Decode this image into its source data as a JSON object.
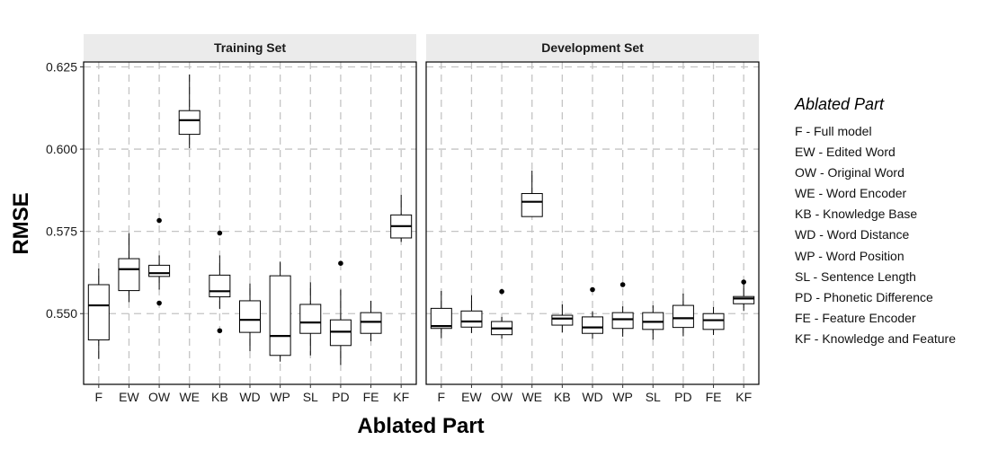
{
  "chart_data": {
    "type": "boxplot",
    "x_label": "Ablated Part",
    "y_label": "RMSE",
    "ylim": [
      0.5285,
      0.6265
    ],
    "y_ticks": [
      0.55,
      0.575,
      0.6,
      0.625
    ],
    "y_tick_labels": [
      "0.550",
      "0.575",
      "0.600",
      "0.625"
    ],
    "grid": "dashed",
    "categories": [
      "F",
      "EW",
      "OW",
      "WE",
      "KB",
      "WD",
      "WP",
      "SL",
      "PD",
      "FE",
      "KF"
    ],
    "panels": [
      {
        "title": "Training Set",
        "boxes": [
          {
            "category": "F",
            "q1": 0.542,
            "median": 0.5525,
            "q3": 0.5588,
            "whisker_low": 0.5362,
            "whisker_high": 0.5637,
            "outliers": []
          },
          {
            "category": "EW",
            "q1": 0.557,
            "median": 0.5635,
            "q3": 0.5667,
            "whisker_low": 0.5535,
            "whisker_high": 0.5745,
            "outliers": []
          },
          {
            "category": "OW",
            "q1": 0.5613,
            "median": 0.5623,
            "q3": 0.5647,
            "whisker_low": 0.5573,
            "whisker_high": 0.5677,
            "outliers": [
              0.5532,
              0.5783
            ]
          },
          {
            "category": "WE",
            "q1": 0.6045,
            "median": 0.6088,
            "q3": 0.6117,
            "whisker_low": 0.6003,
            "whisker_high": 0.6227,
            "outliers": []
          },
          {
            "category": "KB",
            "q1": 0.5551,
            "median": 0.5568,
            "q3": 0.5617,
            "whisker_low": 0.5514,
            "whisker_high": 0.5677,
            "outliers": [
              0.5448,
              0.5745
            ]
          },
          {
            "category": "WD",
            "q1": 0.5443,
            "median": 0.5481,
            "q3": 0.5539,
            "whisker_low": 0.5386,
            "whisker_high": 0.5592,
            "outliers": []
          },
          {
            "category": "WP",
            "q1": 0.5373,
            "median": 0.5432,
            "q3": 0.5615,
            "whisker_low": 0.5354,
            "whisker_high": 0.5658,
            "outliers": []
          },
          {
            "category": "SL",
            "q1": 0.544,
            "median": 0.5473,
            "q3": 0.5528,
            "whisker_low": 0.5373,
            "whisker_high": 0.5595,
            "outliers": []
          },
          {
            "category": "PD",
            "q1": 0.5403,
            "median": 0.5445,
            "q3": 0.5481,
            "whisker_low": 0.5344,
            "whisker_high": 0.5573,
            "outliers": [
              0.5653
            ]
          },
          {
            "category": "FE",
            "q1": 0.544,
            "median": 0.5475,
            "q3": 0.5503,
            "whisker_low": 0.5416,
            "whisker_high": 0.5539,
            "outliers": []
          },
          {
            "category": "KF",
            "q1": 0.573,
            "median": 0.5766,
            "q3": 0.58,
            "whisker_low": 0.5718,
            "whisker_high": 0.5861,
            "outliers": []
          }
        ]
      },
      {
        "title": "Development Set",
        "boxes": [
          {
            "category": "F",
            "q1": 0.5455,
            "median": 0.5462,
            "q3": 0.5516,
            "whisker_low": 0.5425,
            "whisker_high": 0.5569,
            "outliers": []
          },
          {
            "category": "EW",
            "q1": 0.5459,
            "median": 0.5476,
            "q3": 0.5508,
            "whisker_low": 0.5441,
            "whisker_high": 0.5556,
            "outliers": []
          },
          {
            "category": "OW",
            "q1": 0.5436,
            "median": 0.5455,
            "q3": 0.5476,
            "whisker_low": 0.5424,
            "whisker_high": 0.549,
            "outliers": [
              0.5567
            ]
          },
          {
            "category": "WE",
            "q1": 0.5795,
            "median": 0.584,
            "q3": 0.5865,
            "whisker_low": 0.5795,
            "whisker_high": 0.5935,
            "outliers": []
          },
          {
            "category": "KB",
            "q1": 0.5465,
            "median": 0.5485,
            "q3": 0.5495,
            "whisker_low": 0.5443,
            "whisker_high": 0.5528,
            "outliers": []
          },
          {
            "category": "WD",
            "q1": 0.544,
            "median": 0.5458,
            "q3": 0.549,
            "whisker_low": 0.5424,
            "whisker_high": 0.5507,
            "outliers": [
              0.5573
            ]
          },
          {
            "category": "WP",
            "q1": 0.5455,
            "median": 0.5483,
            "q3": 0.5503,
            "whisker_low": 0.543,
            "whisker_high": 0.5522,
            "outliers": [
              0.5588
            ]
          },
          {
            "category": "SL",
            "q1": 0.5452,
            "median": 0.5475,
            "q3": 0.5503,
            "whisker_low": 0.5421,
            "whisker_high": 0.5525,
            "outliers": []
          },
          {
            "category": "PD",
            "q1": 0.5458,
            "median": 0.5486,
            "q3": 0.5525,
            "whisker_low": 0.5431,
            "whisker_high": 0.5561,
            "outliers": []
          },
          {
            "category": "FE",
            "q1": 0.5452,
            "median": 0.548,
            "q3": 0.55,
            "whisker_low": 0.5435,
            "whisker_high": 0.552,
            "outliers": []
          },
          {
            "category": "KF",
            "q1": 0.553,
            "median": 0.5546,
            "q3": 0.5552,
            "whisker_low": 0.5508,
            "whisker_high": 0.5592,
            "outliers": [
              0.5596
            ]
          }
        ]
      }
    ]
  },
  "legend": {
    "title": "Ablated Part",
    "position": "right",
    "items": [
      "F - Full model",
      "EW - Edited Word",
      "OW - Original Word",
      "WE - Word Encoder",
      "KB - Knowledge Base",
      "WD - Word Distance",
      "WP - Word Position",
      "SL - Sentence Length",
      "PD - Phonetic Difference",
      "FE - Feature Encoder",
      "KF - Knowledge and Feature"
    ]
  }
}
